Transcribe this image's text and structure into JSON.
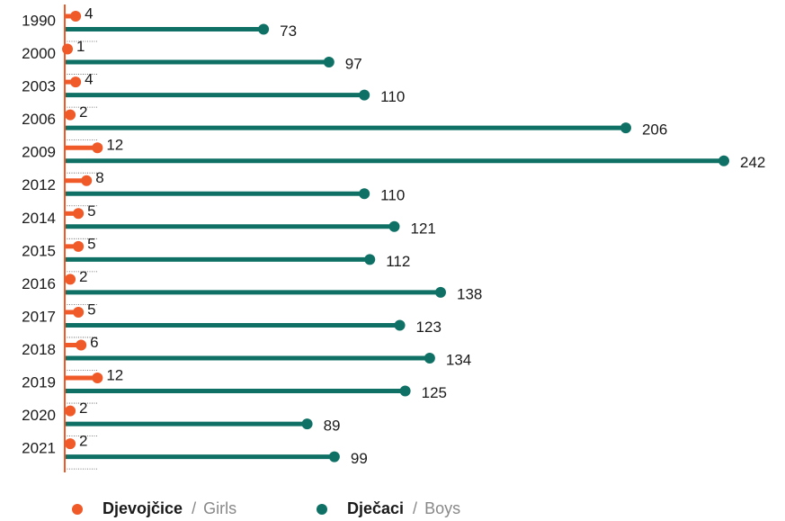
{
  "chart_data": {
    "type": "lollipop",
    "categories": [
      "1990",
      "2000",
      "2003",
      "2006",
      "2009",
      "2012",
      "2014",
      "2015",
      "2016",
      "2017",
      "2018",
      "2019",
      "2020",
      "2021"
    ],
    "series": [
      {
        "name": "Djevojčice",
        "name_en": "Girls",
        "color": "#f05a28",
        "values": [
          4,
          1,
          4,
          2,
          12,
          8,
          5,
          5,
          2,
          5,
          6,
          12,
          2,
          2
        ]
      },
      {
        "name": "Dječaci",
        "name_en": "Boys",
        "color": "#0f7165",
        "values": [
          73,
          97,
          110,
          206,
          242,
          110,
          121,
          112,
          138,
          123,
          134,
          125,
          89,
          99
        ]
      }
    ],
    "legend_separator": "/"
  }
}
